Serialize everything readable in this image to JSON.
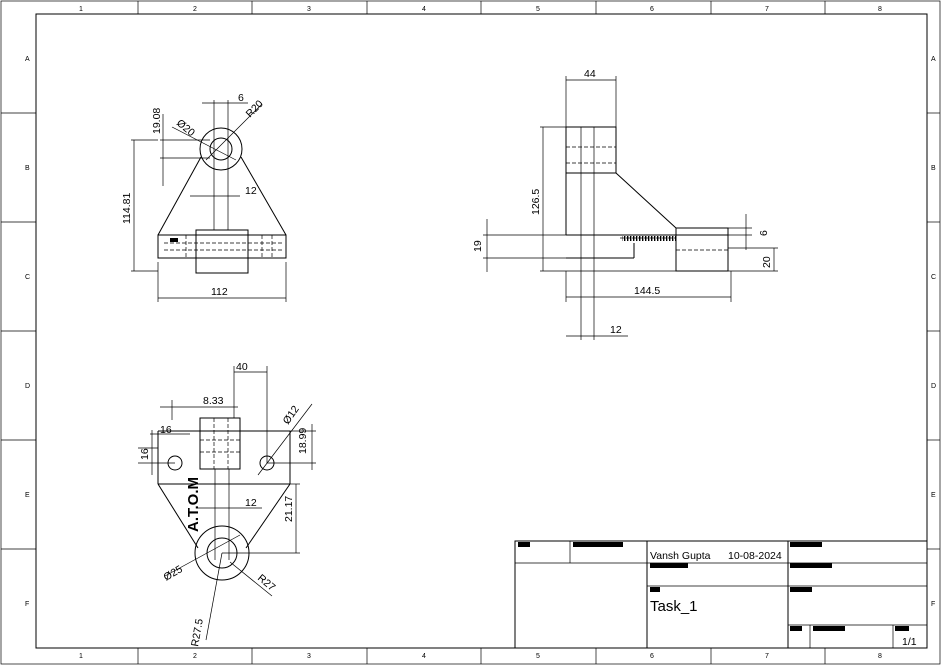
{
  "zones": {
    "columns": [
      "1",
      "2",
      "3",
      "4",
      "5",
      "6",
      "7",
      "8"
    ],
    "rows": [
      "A",
      "B",
      "C",
      "D",
      "E",
      "F"
    ]
  },
  "front_view": {
    "dims": [
      "19.08",
      "6",
      "Ø20",
      "R20",
      "114.81",
      "12",
      "112"
    ]
  },
  "side_view": {
    "dims": [
      "44",
      "126.5",
      "19",
      "6",
      "20",
      "144.5",
      "12"
    ]
  },
  "top_view": {
    "dims": [
      "40",
      "8.33",
      "16",
      "Ø12",
      "18.99",
      "16",
      "12",
      "21.17",
      "Ø25",
      "R27.5",
      "R27"
    ],
    "engraving": "A.T.O.M"
  },
  "title_block": {
    "author": "Vansh Gupta",
    "date": "10-08-2024",
    "title": "Task_1",
    "sheet": "1/1"
  }
}
